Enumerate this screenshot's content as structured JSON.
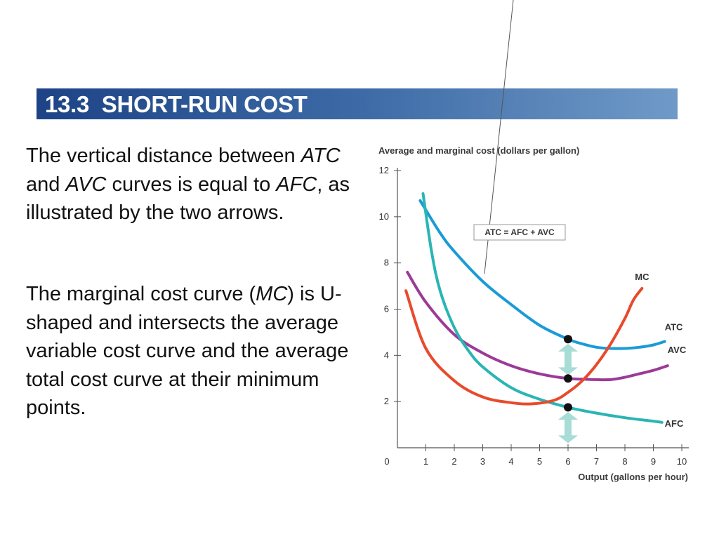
{
  "slide": {
    "title": "13.3  SHORT-RUN COST",
    "para1": {
      "t1": "The vertical distance between",
      "i1": "ATC",
      "t2": " and ",
      "i2": "AVC",
      "t3": " curves is equal to ",
      "i3": "AFC",
      "t4": ", as illustrated by the two arrows."
    },
    "para2": {
      "t1": "The marginal cost curve (",
      "i1": "MC",
      "t2": ") is U-shaped and intersects the average variable cost curve and the average total cost curve at their minimum points."
    }
  },
  "chart_data": {
    "type": "line",
    "ylabel": "Average and marginal cost (dollars per gallon)",
    "xlabel": "Output (gallons per hour)",
    "xlim": [
      0,
      10
    ],
    "ylim": [
      0,
      12
    ],
    "xticks": [
      "0",
      "1",
      "2",
      "3",
      "4",
      "5",
      "6",
      "7",
      "8",
      "9",
      "10"
    ],
    "yticks": [
      "2",
      "4",
      "6",
      "8",
      "10",
      "12"
    ],
    "grid": false,
    "annotation": "ATC = AFC + AVC",
    "series": [
      {
        "name": "ATC",
        "color": "#1a9bd7",
        "x": [
          0.8,
          1.5,
          2,
          3,
          4,
          5,
          6,
          6.5,
          7,
          7.5,
          8,
          8.5,
          9,
          9.4
        ],
        "y": [
          10.7,
          9.3,
          8.5,
          7.2,
          6.2,
          5.3,
          4.7,
          4.5,
          4.35,
          4.3,
          4.3,
          4.35,
          4.45,
          4.6
        ]
      },
      {
        "name": "AVC",
        "color": "#9c3a97",
        "x": [
          0.35,
          1,
          2,
          3,
          4,
          5,
          6,
          7,
          7.5,
          8,
          8.5,
          9,
          9.5
        ],
        "y": [
          7.6,
          6.3,
          4.9,
          4.1,
          3.55,
          3.2,
          3.0,
          2.95,
          2.95,
          3.05,
          3.2,
          3.35,
          3.55
        ]
      },
      {
        "name": "AFC",
        "color": "#2ab5b4",
        "x": [
          0.9,
          1.2,
          1.5,
          2,
          2.5,
          3,
          4,
          5,
          6,
          7,
          8,
          9,
          9.3
        ],
        "y": [
          11.0,
          8.5,
          6.8,
          5.2,
          4.2,
          3.5,
          2.6,
          2.1,
          1.75,
          1.5,
          1.3,
          1.15,
          1.1
        ]
      },
      {
        "name": "MC",
        "color": "#e84a2c",
        "x": [
          0.3,
          1,
          2,
          3,
          4,
          4.7,
          5.5,
          6,
          6.5,
          7,
          7.5,
          8,
          8.3,
          8.6
        ],
        "y": [
          6.8,
          4.3,
          2.9,
          2.2,
          1.95,
          1.9,
          2.05,
          2.4,
          2.9,
          3.6,
          4.5,
          5.6,
          6.4,
          6.9
        ]
      }
    ],
    "points": [
      {
        "x": 6,
        "y": 4.7
      },
      {
        "x": 6,
        "y": 3.0
      },
      {
        "x": 6,
        "y": 1.75
      }
    ],
    "arrows": [
      {
        "x": 6,
        "y1": 3.15,
        "y2": 4.5
      },
      {
        "x": 6,
        "y1": 0.2,
        "y2": 1.55
      }
    ]
  }
}
